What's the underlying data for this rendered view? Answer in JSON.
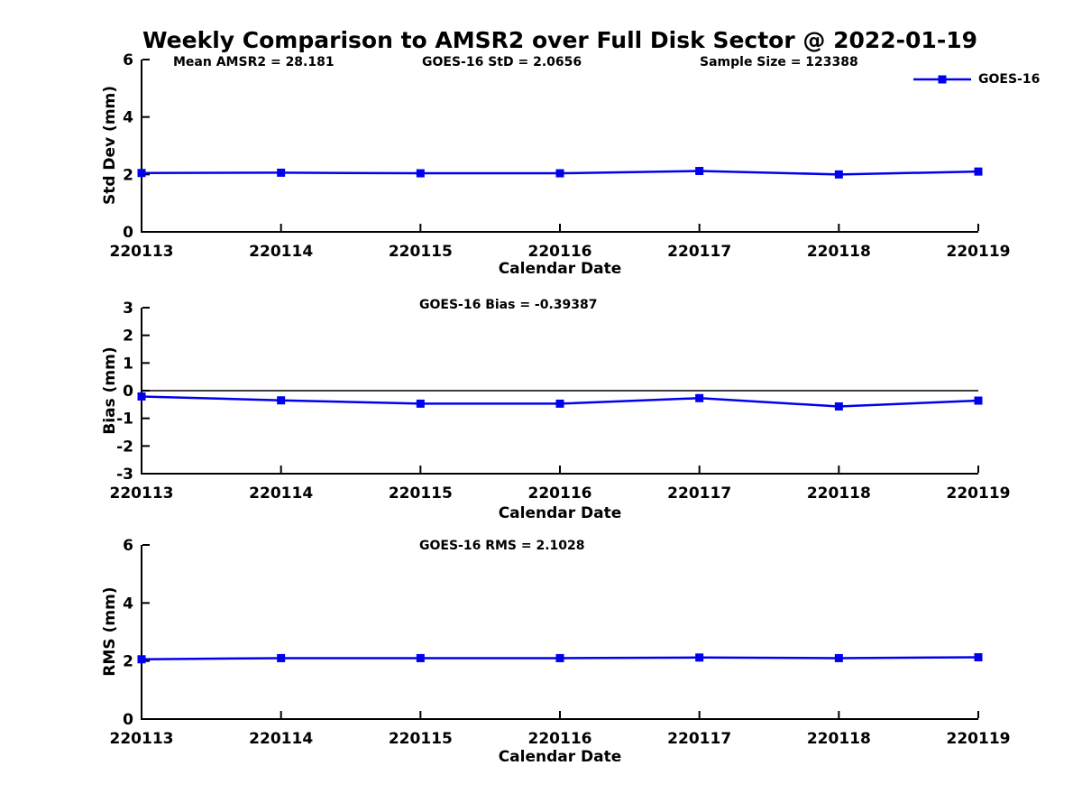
{
  "page_title": "Weekly Comparison to AMSR2 over Full Disk Sector @ 2022-01-19",
  "colors": {
    "line": "#0000EE",
    "axis": "#000000",
    "text": "#000000",
    "background": "#FFFFFF",
    "zero_line": "#000000"
  },
  "chart_data": [
    {
      "type": "line",
      "title": "",
      "annotations": [
        "Mean AMSR2 = 28.181",
        "GOES-16 StD = 2.0656",
        "Sample Size = 123388"
      ],
      "categories": [
        "220113",
        "220114",
        "220115",
        "220116",
        "220117",
        "220118",
        "220119"
      ],
      "series": [
        {
          "name": "GOES-16",
          "values": [
            2.05,
            2.06,
            2.04,
            2.04,
            2.12,
            2.0,
            2.1
          ]
        }
      ],
      "xlabel": "Calendar Date",
      "ylabel": "Std Dev (mm)",
      "ylim": [
        0,
        6
      ],
      "yticks": [
        0,
        2,
        4,
        6
      ],
      "grid": false,
      "zero_line": false,
      "legend_position": "top-right",
      "marker": "square"
    },
    {
      "type": "line",
      "title": "",
      "annotations": [
        "GOES-16 Bias  = -0.39387"
      ],
      "categories": [
        "220113",
        "220114",
        "220115",
        "220116",
        "220117",
        "220118",
        "220119"
      ],
      "series": [
        {
          "name": "GOES-16",
          "values": [
            -0.21,
            -0.35,
            -0.47,
            -0.47,
            -0.27,
            -0.57,
            -0.36
          ]
        }
      ],
      "xlabel": "Calendar Date",
      "ylabel": "Bias (mm)",
      "ylim": [
        -3,
        3
      ],
      "yticks": [
        -3,
        -2,
        -1,
        0,
        1,
        2,
        3
      ],
      "grid": false,
      "zero_line": true,
      "legend_position": "none",
      "marker": "square"
    },
    {
      "type": "line",
      "title": "",
      "annotations": [
        "GOES-16 RMS = 2.1028"
      ],
      "categories": [
        "220113",
        "220114",
        "220115",
        "220116",
        "220117",
        "220118",
        "220119"
      ],
      "series": [
        {
          "name": "GOES-16",
          "values": [
            2.06,
            2.1,
            2.1,
            2.1,
            2.12,
            2.1,
            2.13
          ]
        }
      ],
      "xlabel": "Calendar Date",
      "ylabel": "RMS (mm)",
      "ylim": [
        0,
        6
      ],
      "yticks": [
        0,
        2,
        4,
        6
      ],
      "grid": false,
      "zero_line": false,
      "legend_position": "none",
      "marker": "square"
    }
  ]
}
